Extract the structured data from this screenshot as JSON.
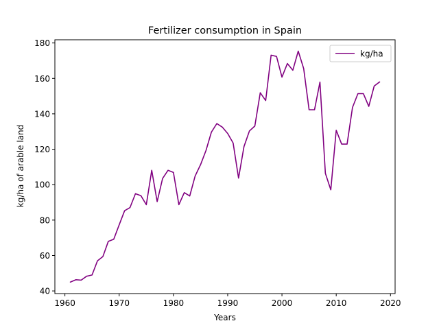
{
  "chart_data": {
    "type": "line",
    "title": "Fertilizer consumption in Spain",
    "xlabel": "Years",
    "ylabel": "kg/ha of arable land",
    "xlim": [
      1958.15,
      2020.85
    ],
    "ylim": [
      38.5,
      181.8
    ],
    "xticks": [
      1960,
      1970,
      1980,
      1990,
      2000,
      2010,
      2020
    ],
    "yticks": [
      40,
      60,
      80,
      100,
      120,
      140,
      160,
      180
    ],
    "grid": false,
    "legend": {
      "position": "top-right",
      "entries": [
        "kg/ha"
      ]
    },
    "series": [
      {
        "name": "kg/ha",
        "color": "#800080",
        "x": [
          1961,
          1962,
          1963,
          1964,
          1965,
          1966,
          1967,
          1968,
          1969,
          1970,
          1971,
          1972,
          1973,
          1974,
          1975,
          1976,
          1977,
          1978,
          1979,
          1980,
          1981,
          1982,
          1983,
          1984,
          1985,
          1986,
          1987,
          1988,
          1989,
          1990,
          1991,
          1992,
          1993,
          1994,
          1995,
          1996,
          1997,
          1998,
          1999,
          2000,
          2001,
          2002,
          2003,
          2004,
          2005,
          2006,
          2007,
          2008,
          2009,
          2010,
          2011,
          2012,
          2013,
          2014,
          2015,
          2016,
          2017,
          2018
        ],
        "y": [
          45.0,
          46.3,
          46.1,
          48.3,
          49.0,
          57.0,
          59.4,
          68.0,
          69.2,
          77.3,
          85.3,
          87.1,
          94.9,
          93.8,
          88.7,
          108.1,
          90.4,
          103.5,
          108.1,
          106.9,
          88.7,
          95.5,
          93.6,
          104.9,
          111.3,
          119.3,
          129.7,
          134.5,
          132.5,
          128.9,
          123.5,
          103.7,
          121.5,
          130.3,
          133.1,
          151.9,
          147.5,
          173.1,
          172.4,
          160.7,
          168.4,
          164.6,
          175.4,
          165.6,
          142.3,
          142.3,
          157.9,
          106.4,
          97.1,
          130.7,
          122.9,
          122.9,
          143.6,
          151.4,
          151.4,
          144.2,
          155.7,
          158.0
        ]
      }
    ]
  }
}
